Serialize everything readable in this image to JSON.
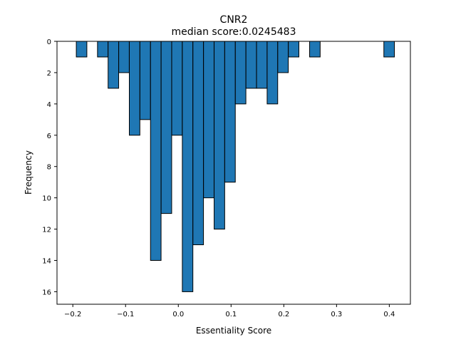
{
  "chart_data": {
    "type": "bar",
    "title": "CNR2",
    "subtitle": "median score:0.0245483",
    "xlabel": "Essentiality Score",
    "ylabel": "Frequency",
    "xlim": [
      -0.23,
      0.44
    ],
    "ylim": [
      0,
      16.8
    ],
    "y_inverted": true,
    "x_axis_position": "top",
    "grid": false,
    "bar_color": "#1f77b4",
    "edge_color": "#000000",
    "bin_width": 0.02,
    "xticks": [
      -0.2,
      -0.1,
      0.0,
      0.1,
      0.2,
      0.3,
      0.4
    ],
    "xtick_labels": [
      "−0.2",
      "−0.1",
      "0.0",
      "0.1",
      "0.2",
      "0.3",
      "0.4"
    ],
    "yticks": [
      0,
      2,
      4,
      6,
      8,
      10,
      12,
      14,
      16
    ],
    "bins": [
      {
        "x0": -0.1934,
        "count": 1
      },
      {
        "x0": -0.1532,
        "count": 1
      },
      {
        "x0": -0.1331,
        "count": 3
      },
      {
        "x0": -0.113,
        "count": 2
      },
      {
        "x0": -0.0929,
        "count": 6
      },
      {
        "x0": -0.0728,
        "count": 5
      },
      {
        "x0": -0.0527,
        "count": 14
      },
      {
        "x0": -0.0326,
        "count": 11
      },
      {
        "x0": -0.0125,
        "count": 6
      },
      {
        "x0": 0.0076,
        "count": 16
      },
      {
        "x0": 0.0277,
        "count": 13
      },
      {
        "x0": 0.0478,
        "count": 10
      },
      {
        "x0": 0.0679,
        "count": 12
      },
      {
        "x0": 0.088,
        "count": 9
      },
      {
        "x0": 0.1081,
        "count": 4
      },
      {
        "x0": 0.1282,
        "count": 3
      },
      {
        "x0": 0.1483,
        "count": 3
      },
      {
        "x0": 0.1684,
        "count": 4
      },
      {
        "x0": 0.1885,
        "count": 2
      },
      {
        "x0": 0.2086,
        "count": 1
      },
      {
        "x0": 0.2489,
        "count": 1
      },
      {
        "x0": 0.3897,
        "count": 1
      }
    ]
  }
}
